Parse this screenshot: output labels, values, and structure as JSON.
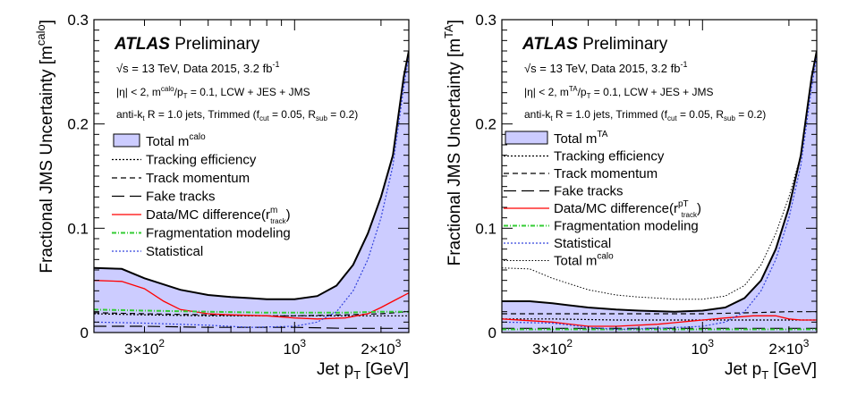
{
  "chart_data": [
    {
      "type": "area",
      "atlas_label": "ATLAS",
      "preliminary_label": "Preliminary",
      "ylabel": "Fractional JMS Uncertainty [m",
      "ylabel_sup": "calo",
      "ylabel_close": "]",
      "xlabel": "Jet p",
      "xlabel_sub": "T",
      "xlabel_unit": " [GeV]",
      "x_scale": "log",
      "xlim": [
        200,
        2500
      ],
      "ylim": [
        0,
        0.3
      ],
      "y_ticks": [
        "0",
        "0.1",
        "0.2",
        "0.3"
      ],
      "x_ticks": [
        {
          "value": 300,
          "label": "3×10",
          "sup": "2"
        },
        {
          "value": 1000,
          "label": "10",
          "sup": "3"
        },
        {
          "value": 2000,
          "label": "2×10",
          "sup": "3"
        }
      ],
      "info_lines": [
        {
          "text": "√s = 13 TeV, Data 2015, 3.2 fb",
          "sup": "-1"
        },
        {
          "text": "|η| < 2, m",
          "sup": "calo",
          "text2": "/p",
          "sub": "T",
          "text3": " = 0.1, LCW + JES + JMS"
        },
        {
          "text": "anti-k",
          "sub": "t",
          "text2": " R = 1.0 jets, Trimmed (f",
          "sub2": "cut",
          "text3": " = 0.05, R",
          "sub3": "sub",
          "text4": " = 0.2)"
        }
      ],
      "series": [
        {
          "name": "Total m",
          "name_sup": "calo",
          "style": "band",
          "color": "#ccccff",
          "edge": "#000000",
          "x": [
            200,
            250,
            300,
            400,
            500,
            600,
            700,
            800,
            1000,
            1200,
            1400,
            1600,
            1800,
            2000,
            2200,
            2400,
            2500
          ],
          "values": [
            0.062,
            0.061,
            0.052,
            0.041,
            0.036,
            0.034,
            0.033,
            0.032,
            0.032,
            0.035,
            0.045,
            0.065,
            0.095,
            0.13,
            0.17,
            0.245,
            0.27
          ]
        },
        {
          "name": "Tracking efficiency",
          "style": "dotted",
          "color": "#000000",
          "x": [
            200,
            300,
            500,
            800,
            1000,
            1500,
            2000,
            2500
          ],
          "values": [
            0.018,
            0.017,
            0.016,
            0.016,
            0.016,
            0.016,
            0.016,
            0.016
          ]
        },
        {
          "name": "Track momentum",
          "style": "dashed",
          "color": "#000000",
          "x": [
            200,
            300,
            500,
            800,
            1000,
            1500,
            2000,
            2500
          ],
          "values": [
            0.019,
            0.018,
            0.017,
            0.016,
            0.016,
            0.017,
            0.018,
            0.02
          ]
        },
        {
          "name": "Fake tracks",
          "style": "longdash",
          "color": "#000000",
          "x": [
            200,
            300,
            500,
            800,
            1000,
            1500,
            2000,
            2500
          ],
          "values": [
            0.006,
            0.006,
            0.005,
            0.005,
            0.005,
            0.004,
            0.004,
            0.004
          ]
        },
        {
          "name": "Data/MC difference(r",
          "name_sup": "m",
          "name_sub": "track",
          "name_close": ")",
          "style": "solid",
          "color": "#ff0000",
          "x": [
            200,
            250,
            300,
            350,
            400,
            500,
            600,
            800,
            1000,
            1200,
            1500,
            1800,
            2000,
            2200,
            2500
          ],
          "values": [
            0.05,
            0.049,
            0.042,
            0.03,
            0.022,
            0.018,
            0.017,
            0.016,
            0.014,
            0.013,
            0.014,
            0.018,
            0.024,
            0.03,
            0.038
          ]
        },
        {
          "name": "Fragmentation modeling",
          "style": "dashdot",
          "color": "#33cc33",
          "x": [
            200,
            300,
            500,
            800,
            1000,
            1500,
            2000,
            2500
          ],
          "values": [
            0.022,
            0.021,
            0.02,
            0.019,
            0.019,
            0.019,
            0.02,
            0.02
          ]
        },
        {
          "name": "Statistical",
          "style": "dotted",
          "color": "#3344dd",
          "x": [
            200,
            300,
            500,
            700,
            1000,
            1200,
            1400,
            1600,
            1800,
            2000,
            2200,
            2400,
            2500
          ],
          "values": [
            0.01,
            0.009,
            0.007,
            0.005,
            0.006,
            0.01,
            0.02,
            0.04,
            0.07,
            0.11,
            0.16,
            0.235,
            0.265
          ]
        }
      ]
    },
    {
      "type": "area",
      "atlas_label": "ATLAS",
      "preliminary_label": "Preliminary",
      "ylabel": "Fractional JMS Uncertainty [m",
      "ylabel_sup": "TA",
      "ylabel_close": "]",
      "xlabel": "Jet p",
      "xlabel_sub": "T",
      "xlabel_unit": " [GeV]",
      "x_scale": "log",
      "xlim": [
        200,
        2500
      ],
      "ylim": [
        0,
        0.3
      ],
      "y_ticks": [
        "0",
        "0.1",
        "0.2",
        "0.3"
      ],
      "x_ticks": [
        {
          "value": 300,
          "label": "3×10",
          "sup": "2"
        },
        {
          "value": 1000,
          "label": "10",
          "sup": "3"
        },
        {
          "value": 2000,
          "label": "2×10",
          "sup": "3"
        }
      ],
      "info_lines": [
        {
          "text": "√s = 13 TeV, Data 2015, 3.2 fb",
          "sup": "-1"
        },
        {
          "text": "|η| < 2, m",
          "sup": "TA",
          "text2": "/p",
          "sub": "T",
          "text3": " = 0.1, LCW + JES + JMS"
        },
        {
          "text": "anti-k",
          "sub": "t",
          "text2": " R = 1.0 jets, Trimmed (f",
          "sub2": "cut",
          "text3": " = 0.05, R",
          "sub3": "sub",
          "text4": " = 0.2)"
        }
      ],
      "series": [
        {
          "name": "Total m",
          "name_sup": "TA",
          "style": "band",
          "color": "#ccccff",
          "edge": "#000000",
          "x": [
            200,
            250,
            300,
            400,
            500,
            600,
            800,
            1000,
            1200,
            1400,
            1600,
            1800,
            2000,
            2200,
            2400,
            2500
          ],
          "values": [
            0.03,
            0.03,
            0.028,
            0.024,
            0.022,
            0.021,
            0.02,
            0.021,
            0.024,
            0.033,
            0.05,
            0.08,
            0.12,
            0.17,
            0.245,
            0.27
          ]
        },
        {
          "name": "Tracking efficiency",
          "style": "dotted",
          "color": "#000000",
          "x": [
            200,
            300,
            500,
            800,
            1000,
            1500,
            2000,
            2500
          ],
          "values": [
            0.013,
            0.013,
            0.012,
            0.012,
            0.012,
            0.012,
            0.012,
            0.012
          ]
        },
        {
          "name": "Track momentum",
          "style": "dashed",
          "color": "#000000",
          "x": [
            200,
            300,
            500,
            800,
            1000,
            1500,
            2000,
            2500
          ],
          "values": [
            0.018,
            0.018,
            0.018,
            0.018,
            0.018,
            0.019,
            0.02,
            0.02
          ]
        },
        {
          "name": "Fake tracks",
          "style": "longdash",
          "color": "#000000",
          "x": [
            200,
            300,
            500,
            800,
            1000,
            1500,
            2000,
            2500
          ],
          "values": [
            0.004,
            0.004,
            0.004,
            0.004,
            0.004,
            0.004,
            0.004,
            0.004
          ]
        },
        {
          "name": "Data/MC difference(r",
          "name_sup": "pT",
          "name_sub": "track",
          "name_close": ")",
          "style": "solid",
          "color": "#ff0000",
          "x": [
            200,
            300,
            400,
            500,
            700,
            1000,
            1200,
            1500,
            1800,
            2000,
            2200,
            2500
          ],
          "values": [
            0.013,
            0.01,
            0.006,
            0.006,
            0.008,
            0.012,
            0.014,
            0.016,
            0.016,
            0.013,
            0.012,
            0.012
          ]
        },
        {
          "name": "Fragmentation modeling",
          "style": "dashdot",
          "color": "#33cc33",
          "x": [
            200,
            300,
            500,
            800,
            1000,
            1500,
            2000,
            2500
          ],
          "values": [
            0.003,
            0.003,
            0.003,
            0.003,
            0.003,
            0.003,
            0.003,
            0.003
          ]
        },
        {
          "name": "Statistical",
          "style": "dotted",
          "color": "#3344dd",
          "x": [
            200,
            300,
            400,
            500,
            700,
            1000,
            1200,
            1400,
            1600,
            1800,
            2000,
            2200,
            2400,
            2500
          ],
          "values": [
            0.01,
            0.009,
            0.005,
            0.003,
            0.004,
            0.006,
            0.01,
            0.02,
            0.04,
            0.07,
            0.11,
            0.16,
            0.235,
            0.265
          ]
        },
        {
          "name": "Total m",
          "name_sup": "calo",
          "style": "thindotted",
          "color": "#000000",
          "x": [
            200,
            250,
            300,
            400,
            500,
            600,
            700,
            800,
            1000,
            1200,
            1400,
            1600,
            1800,
            2000,
            2200,
            2400,
            2500
          ],
          "values": [
            0.062,
            0.061,
            0.052,
            0.041,
            0.036,
            0.034,
            0.033,
            0.032,
            0.032,
            0.035,
            0.045,
            0.065,
            0.095,
            0.13,
            0.17,
            0.245,
            0.27
          ]
        }
      ]
    }
  ]
}
